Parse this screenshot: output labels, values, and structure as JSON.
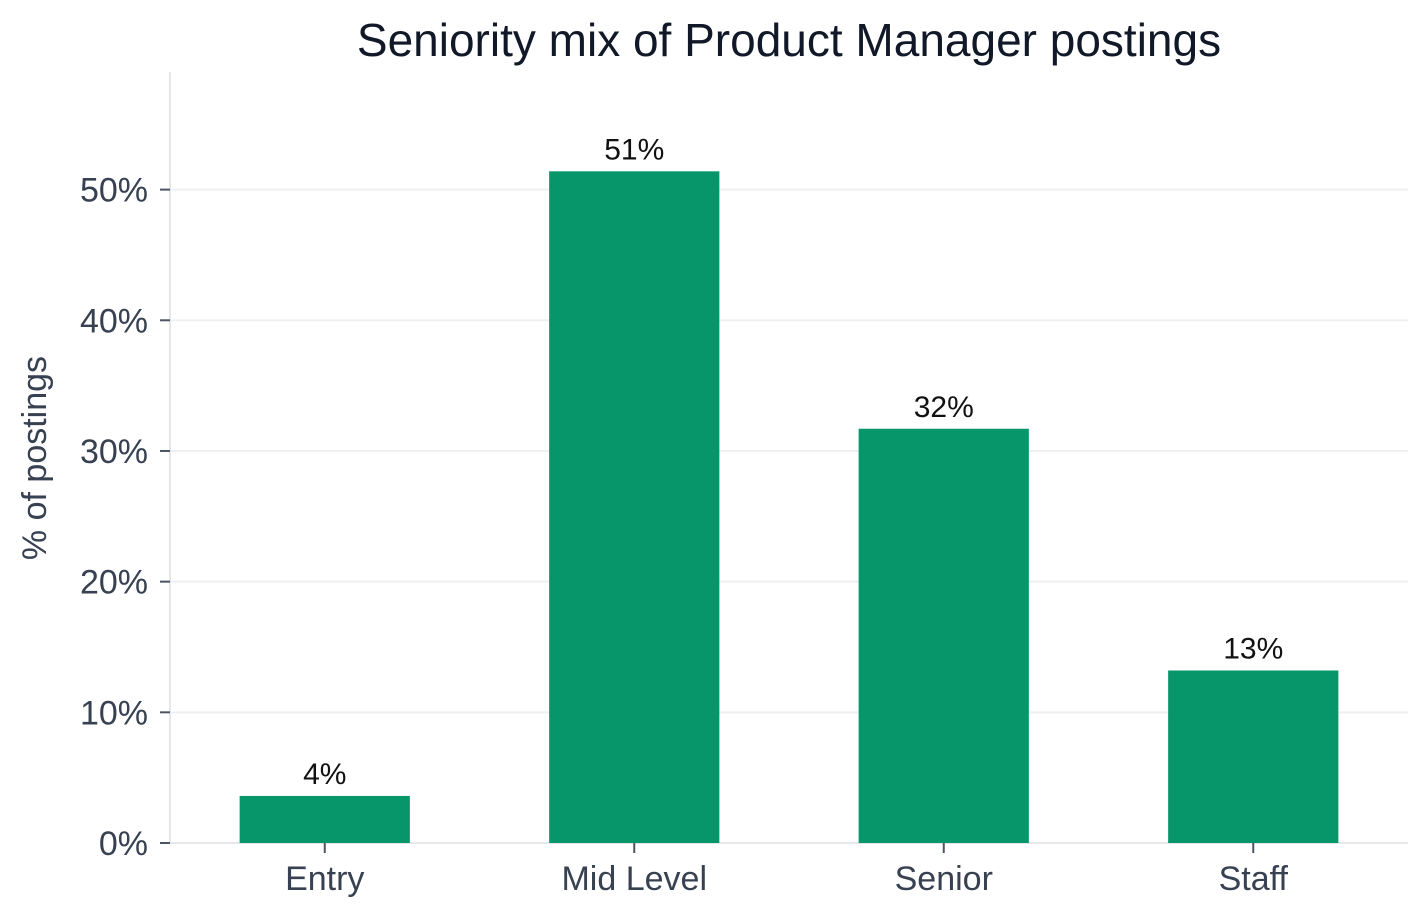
{
  "chart_data": {
    "type": "bar",
    "title": "Seniority mix of Product Manager postings",
    "xlabel": "",
    "ylabel": "% of postings",
    "categories": [
      "Entry",
      "Mid Level",
      "Senior",
      "Staff"
    ],
    "values": [
      3.6,
      51.4,
      31.7,
      13.2
    ],
    "data_labels": [
      "4%",
      "51%",
      "32%",
      "13%"
    ],
    "y_ticks": [
      0,
      10,
      20,
      30,
      40,
      50
    ],
    "y_tick_labels": [
      "0%",
      "10%",
      "20%",
      "30%",
      "40%",
      "50%"
    ],
    "ylim": [
      0,
      59
    ],
    "grid": true,
    "bar_color": "#06966A",
    "grid_color": "#EEF0F2",
    "axis_color": "#E5E7EB"
  }
}
